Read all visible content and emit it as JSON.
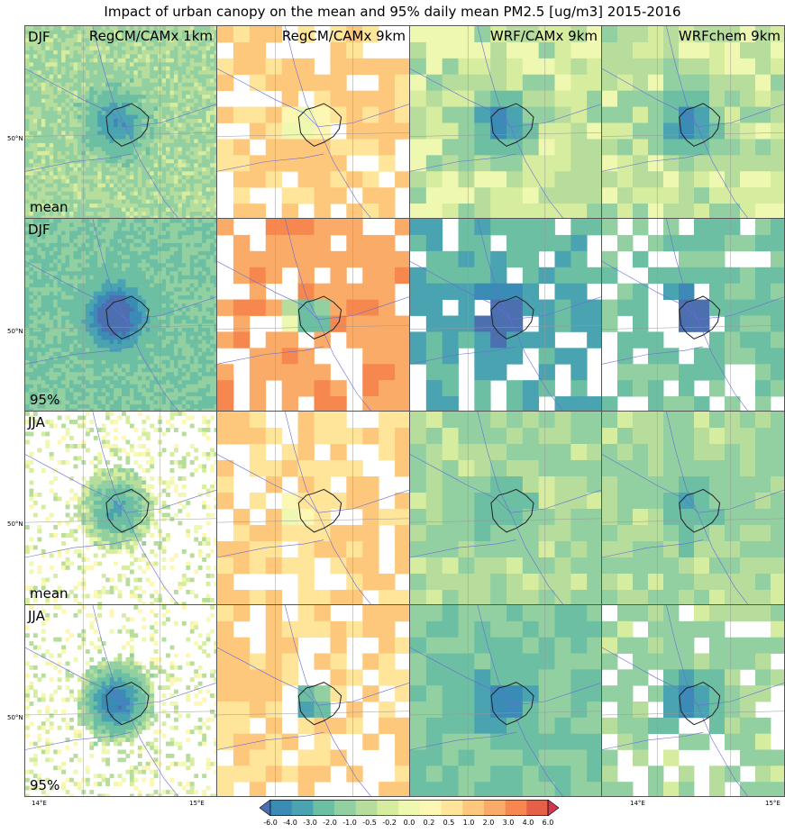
{
  "title": "Impact of urban canopy on the mean and 95% daily mean PM2.5 [ug/m3] 2015-2016",
  "columns": [
    "RegCM/CAMx 1km",
    "RegCM/CAMx 9km",
    "WRF/CAMx 9km",
    "WRFchem 9km"
  ],
  "rows": [
    {
      "season": "DJF",
      "stat": "mean"
    },
    {
      "season": "DJF",
      "stat": "95%"
    },
    {
      "season": "JJA",
      "stat": "mean"
    },
    {
      "season": "JJA",
      "stat": "95%"
    }
  ],
  "lat_label": "50°N",
  "lon_labels": [
    "14°E",
    "15°E"
  ],
  "colorbar": {
    "levels": [
      "-6.0",
      "-4.0",
      "-3.0",
      "-2.0",
      "-1.0",
      "-0.5",
      "-0.2",
      "0.0",
      "0.2",
      "0.5",
      "1.0",
      "2.0",
      "3.0",
      "4.0",
      "6.0"
    ],
    "colors": [
      "#4c6fb0",
      "#3a8bb5",
      "#4aa3b0",
      "#6cbfa2",
      "#92d0a2",
      "#b6dd9c",
      "#d6ec9e",
      "#eff8b0",
      "#fdf7b4",
      "#fee59a",
      "#fdc87c",
      "#fbab68",
      "#f6884f",
      "#e65f49",
      "#d0394d"
    ],
    "extend": "both"
  },
  "chart_data": [
    {
      "type": "heatmap",
      "season": "DJF",
      "stat": "mean",
      "model": "RegCM/CAMx 1km",
      "center_min": -3.0,
      "background": -0.5
    },
    {
      "type": "heatmap",
      "season": "DJF",
      "stat": "mean",
      "model": "RegCM/CAMx 9km",
      "center_min": -0.2,
      "background": 0.5
    },
    {
      "type": "heatmap",
      "season": "DJF",
      "stat": "mean",
      "model": "WRF/CAMx 9km",
      "center_min": -4.0,
      "background": -0.2
    },
    {
      "type": "heatmap",
      "season": "DJF",
      "stat": "mean",
      "model": "WRFchem 9km",
      "center_min": -4.0,
      "background": -0.2
    },
    {
      "type": "heatmap",
      "season": "DJF",
      "stat": "95%",
      "model": "RegCM/CAMx 1km",
      "center_min": -6.0,
      "background": -1.0
    },
    {
      "type": "heatmap",
      "season": "DJF",
      "stat": "95%",
      "model": "RegCM/CAMx 9km",
      "center_min": -2.0,
      "background": 2.0
    },
    {
      "type": "heatmap",
      "season": "DJF",
      "stat": "95%",
      "model": "WRF/CAMx 9km",
      "center_min": -6.0,
      "background": -2.0
    },
    {
      "type": "heatmap",
      "season": "DJF",
      "stat": "95%",
      "model": "WRFchem 9km",
      "center_min": -6.0,
      "background": -1.0
    },
    {
      "type": "heatmap",
      "season": "JJA",
      "stat": "mean",
      "model": "RegCM/CAMx 1km",
      "center_min": -2.0,
      "background": 0.0
    },
    {
      "type": "heatmap",
      "season": "JJA",
      "stat": "mean",
      "model": "RegCM/CAMx 9km",
      "center_min": 0.5,
      "background": 0.5
    },
    {
      "type": "heatmap",
      "season": "JJA",
      "stat": "mean",
      "model": "WRF/CAMx 9km",
      "center_min": -2.0,
      "background": -0.5
    },
    {
      "type": "heatmap",
      "season": "JJA",
      "stat": "mean",
      "model": "WRFchem 9km",
      "center_min": -2.0,
      "background": -0.5
    },
    {
      "type": "heatmap",
      "season": "JJA",
      "stat": "95%",
      "model": "RegCM/CAMx 1km",
      "center_min": -4.0,
      "background": 0.0
    },
    {
      "type": "heatmap",
      "season": "JJA",
      "stat": "95%",
      "model": "RegCM/CAMx 9km",
      "center_min": -2.0,
      "background": 0.5
    },
    {
      "type": "heatmap",
      "season": "JJA",
      "stat": "95%",
      "model": "WRF/CAMx 9km",
      "center_min": -4.0,
      "background": -1.0
    },
    {
      "type": "heatmap",
      "season": "JJA",
      "stat": "95%",
      "model": "WRFchem 9km",
      "center_min": -4.0,
      "background": -0.5
    }
  ]
}
